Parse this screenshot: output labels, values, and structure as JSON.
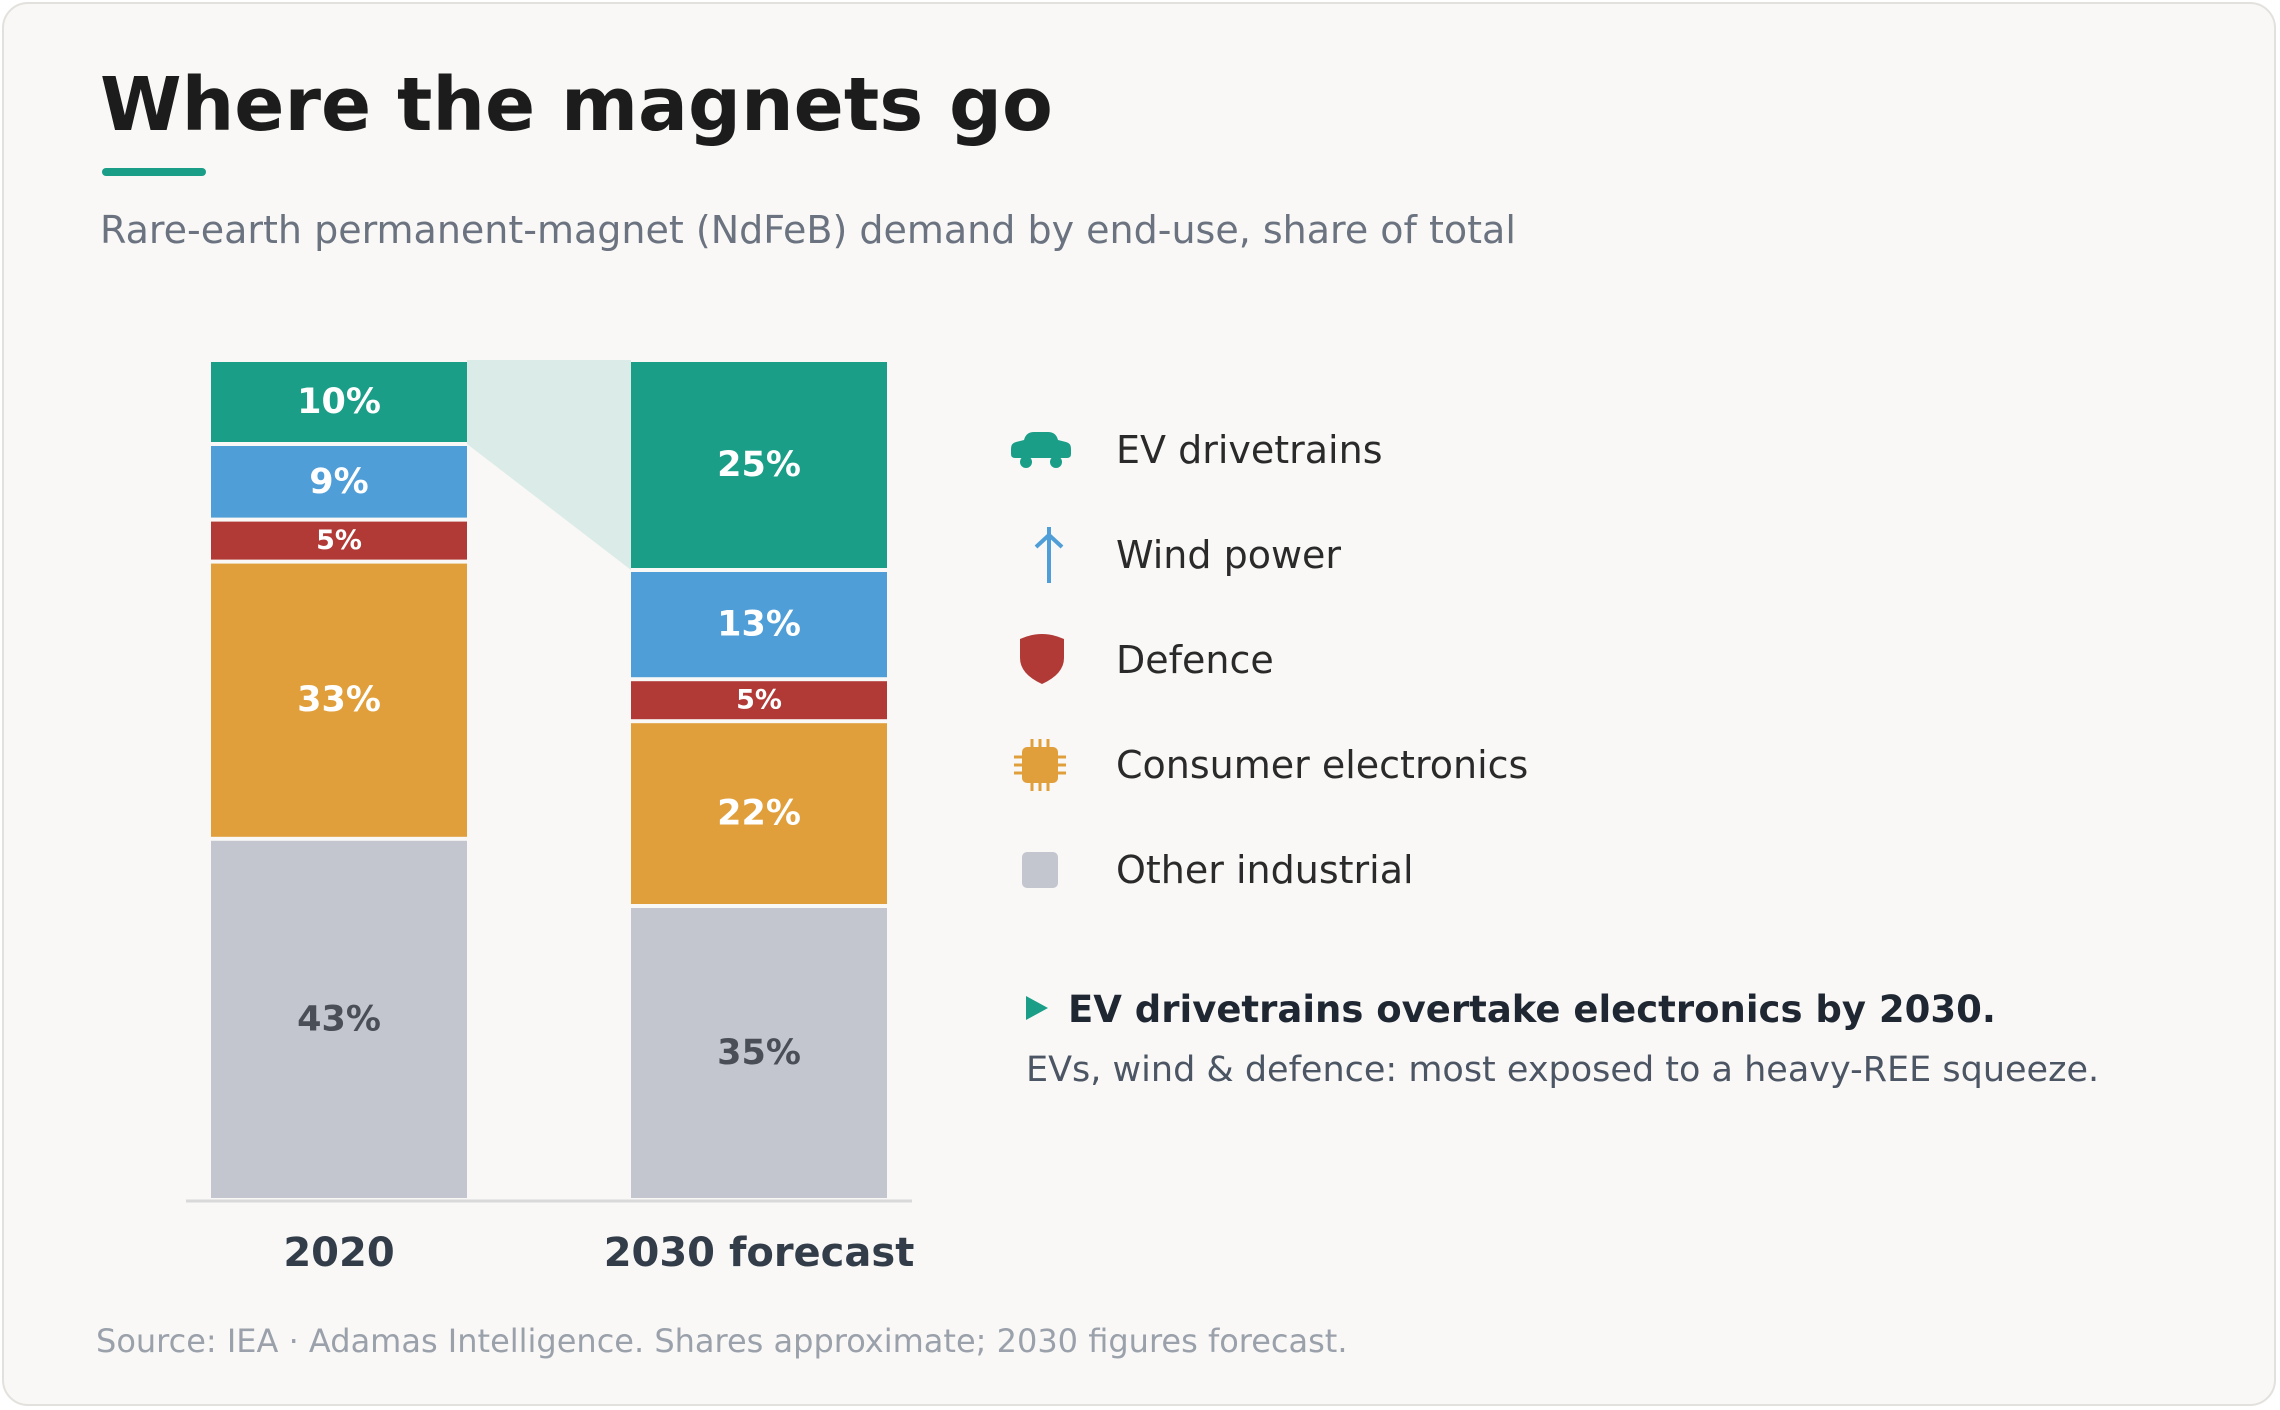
{
  "title": "Where the magnets go",
  "subtitle": "Rare-earth permanent-magnet (NdFeB) demand by end-use, share of total",
  "source": "Source: IEA · Adamas Intelligence. Shares approximate; 2030 figures forecast.",
  "note": {
    "headline": "EV drivetrains overtake electronics by 2030.",
    "body": "EVs, wind & defence: most exposed to a heavy-REE squeeze."
  },
  "colors": {
    "accent": "#1b9e88",
    "ev": "#1b9e88",
    "wind": "#4f9ed7",
    "defence": "#b13a37",
    "electronics": "#e09f3a",
    "other": "#c3c6ce"
  },
  "legend": [
    {
      "key": "ev",
      "label": "EV drivetrains",
      "icon": "car-icon"
    },
    {
      "key": "wind",
      "label": "Wind power",
      "icon": "wind-turbine-icon"
    },
    {
      "key": "defence",
      "label": "Defence",
      "icon": "shield-icon"
    },
    {
      "key": "electronics",
      "label": "Consumer electronics",
      "icon": "chip-icon"
    },
    {
      "key": "other",
      "label": "Other industrial",
      "icon": "square-icon"
    }
  ],
  "chart_data": {
    "type": "bar",
    "stacked": true,
    "categories": [
      "2020",
      "2030 forecast"
    ],
    "ylim": [
      0,
      100
    ],
    "unit": "%",
    "series": [
      {
        "key": "other",
        "name": "Other industrial",
        "values": [
          43,
          35
        ]
      },
      {
        "key": "electronics",
        "name": "Consumer electronics",
        "values": [
          33,
          22
        ]
      },
      {
        "key": "defence",
        "name": "Defence",
        "values": [
          5,
          5
        ]
      },
      {
        "key": "wind",
        "name": "Wind power",
        "values": [
          9,
          13
        ]
      },
      {
        "key": "ev",
        "name": "EV drivetrains",
        "values": [
          10,
          25
        ]
      }
    ],
    "value_labels": [
      [
        "43%",
        "35%"
      ],
      [
        "33%",
        "22%"
      ],
      [
        "5%",
        "5%"
      ],
      [
        "9%",
        "13%"
      ],
      [
        "10%",
        "25%"
      ]
    ]
  }
}
